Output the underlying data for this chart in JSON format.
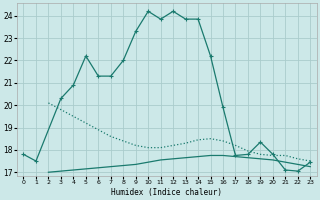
{
  "xlabel": "Humidex (Indice chaleur)",
  "background_color": "#cce8e8",
  "grid_color": "#aacccc",
  "line_color": "#1a7a6e",
  "xlim": [
    -0.5,
    23.5
  ],
  "ylim": [
    16.85,
    24.55
  ],
  "xticks": [
    0,
    1,
    2,
    3,
    4,
    5,
    6,
    7,
    8,
    9,
    10,
    11,
    12,
    13,
    14,
    15,
    16,
    17,
    18,
    19,
    20,
    21,
    22,
    23
  ],
  "yticks": [
    17,
    18,
    19,
    20,
    21,
    22,
    23,
    24
  ],
  "line1_x": [
    0,
    1,
    3,
    4,
    5,
    6,
    7,
    8,
    9,
    10,
    11,
    12,
    13,
    14,
    15,
    16,
    17,
    18,
    19,
    20,
    21,
    22,
    23
  ],
  "line1_y": [
    17.8,
    17.5,
    20.3,
    20.9,
    22.2,
    21.3,
    21.3,
    22.0,
    23.3,
    24.2,
    23.85,
    24.2,
    23.85,
    23.85,
    22.2,
    19.9,
    17.75,
    17.8,
    18.35,
    17.8,
    17.1,
    17.05,
    17.45
  ],
  "line2_x": [
    2,
    3,
    4,
    5,
    6,
    7,
    8,
    9,
    10,
    11,
    12,
    13,
    14,
    15,
    16,
    17,
    18,
    19,
    20,
    21,
    22,
    23
  ],
  "line2_y": [
    20.1,
    19.8,
    19.5,
    19.2,
    18.9,
    18.6,
    18.4,
    18.2,
    18.1,
    18.1,
    18.2,
    18.3,
    18.45,
    18.5,
    18.4,
    18.2,
    17.95,
    17.8,
    17.75,
    17.75,
    17.6,
    17.5
  ],
  "line3_x": [
    2,
    3,
    4,
    5,
    6,
    7,
    8,
    9,
    10,
    11,
    12,
    13,
    14,
    15,
    16,
    17,
    18,
    19,
    20,
    21,
    22,
    23
  ],
  "line3_y": [
    17.0,
    17.05,
    17.1,
    17.15,
    17.2,
    17.25,
    17.3,
    17.35,
    17.45,
    17.55,
    17.6,
    17.65,
    17.7,
    17.75,
    17.75,
    17.7,
    17.65,
    17.6,
    17.55,
    17.45,
    17.35,
    17.25
  ]
}
